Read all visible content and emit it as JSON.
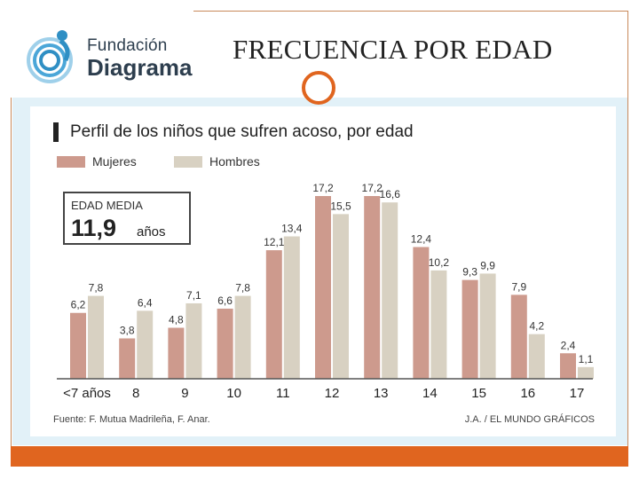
{
  "slide": {
    "title": "FRECUENCIA POR EDAD",
    "logo": {
      "line1": "Fundación",
      "line2": "Diagrama"
    }
  },
  "colors": {
    "accent": "#e0651f",
    "mujeres": "#cd9a8d",
    "hombres": "#d8d1c2",
    "logo_blue": "#2f8fc4"
  },
  "chart_data": {
    "type": "bar",
    "title": "Perfil de los niños que sufren acoso, por edad",
    "xlabel": "",
    "ylabel": "",
    "ylim": [
      0,
      17.2
    ],
    "legend_position": "top-left",
    "categories": [
      "<7 años",
      "8",
      "9",
      "10",
      "11",
      "12",
      "13",
      "14",
      "15",
      "16",
      "17"
    ],
    "series": [
      {
        "name": "Mujeres",
        "values": [
          6.2,
          3.8,
          4.8,
          6.6,
          12.1,
          17.2,
          17.2,
          12.4,
          9.3,
          7.9,
          2.4
        ],
        "labels": [
          "6,2",
          "3,8",
          "4,8",
          "6,6",
          "12,1",
          "17,2",
          "17,2",
          "12,4",
          "9,3",
          "7,9",
          "2,4"
        ]
      },
      {
        "name": "Hombres",
        "values": [
          7.8,
          6.4,
          7.1,
          7.8,
          13.4,
          15.5,
          16.6,
          10.2,
          9.9,
          4.2,
          1.1
        ],
        "labels": [
          "7,8",
          "6,4",
          "7,1",
          "7,8",
          "13,4",
          "15,5",
          "16,6",
          "10,2",
          "9,9",
          "4,2",
          "1,1"
        ]
      }
    ],
    "annotation": {
      "title": "EDAD MEDIA",
      "value": "11,9",
      "unit": "años"
    },
    "source": "Fuente: F. Mutua Madrileña, F. Anar.",
    "credit": "J.A. / EL MUNDO GRÁFICOS"
  }
}
